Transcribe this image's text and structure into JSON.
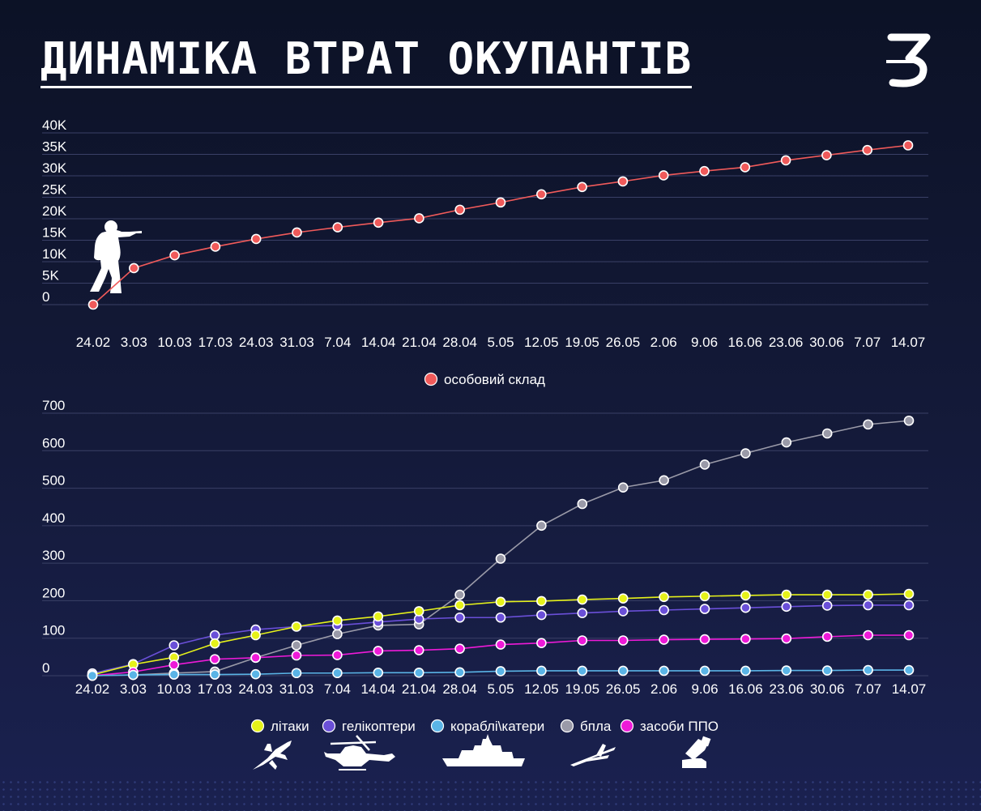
{
  "title": "ДИНАМІКА ВТРАТ ОКУПАНТІВ",
  "logo_text": "З",
  "colors": {
    "background": "#0c1226",
    "personnel": "#f05a5a",
    "aircraft": "#e6f21a",
    "helicopters": "#6a4fd8",
    "ships": "#5ab4e6",
    "uav": "#9a9aa8",
    "air_defense": "#ee1ad8"
  },
  "icons": [
    "soldier-icon",
    "plane-icon",
    "helicopter-icon",
    "ship-icon",
    "uav-icon",
    "air-defense-icon"
  ],
  "chart_data": [
    {
      "type": "line",
      "categories": [
        "24.02",
        "3.03",
        "10.03",
        "17.03",
        "24.03",
        "31.03",
        "7.04",
        "14.04",
        "21.04",
        "28.04",
        "5.05",
        "12.05",
        "19.05",
        "26.05",
        "2.06",
        "9.06",
        "16.06",
        "23.06",
        "30.06",
        "7.07",
        "14.07"
      ],
      "y_ticks": [
        "0",
        "5K",
        "10K",
        "15K",
        "20K",
        "25K",
        "30K",
        "35K",
        "40K"
      ],
      "ylim": [
        0,
        40000
      ],
      "grid": true,
      "legend_position": "bottom-center",
      "series": [
        {
          "name": "особовий склад",
          "color": "#f05a5a",
          "values": [
            0,
            8500,
            11500,
            13500,
            15300,
            16800,
            18000,
            19100,
            20100,
            22100,
            23800,
            25700,
            27400,
            28700,
            30100,
            31100,
            32000,
            33600,
            34800,
            36000,
            37100
          ]
        }
      ]
    },
    {
      "type": "line",
      "categories": [
        "24.02",
        "3.03",
        "10.03",
        "17.03",
        "24.03",
        "31.03",
        "7.04",
        "14.04",
        "21.04",
        "28.04",
        "5.05",
        "12.05",
        "19.05",
        "26.05",
        "2.06",
        "9.06",
        "16.06",
        "23.06",
        "30.06",
        "7.07",
        "14.07"
      ],
      "y_ticks": [
        "0",
        "100",
        "200",
        "300",
        "400",
        "500",
        "600",
        "700"
      ],
      "ylim": [
        0,
        700
      ],
      "grid": true,
      "legend_position": "bottom-center",
      "series": [
        {
          "name": "літаки",
          "color": "#e6f21a",
          "values": [
            2,
            30,
            49,
            86,
            108,
            131,
            147,
            158,
            172,
            188,
            197,
            199,
            203,
            206,
            210,
            212,
            214,
            216,
            216,
            216,
            218
          ]
        },
        {
          "name": "гелікоптери",
          "color": "#6a4fd8",
          "values": [
            6,
            31,
            81,
            108,
            123,
            131,
            134,
            143,
            151,
            155,
            155,
            162,
            167,
            172,
            175,
            178,
            181,
            184,
            187,
            188,
            188
          ]
        },
        {
          "name": "кораблі\\катери",
          "color": "#5ab4e6",
          "values": [
            0,
            2,
            3,
            3,
            4,
            7,
            7,
            8,
            8,
            9,
            12,
            13,
            13,
            13,
            13,
            13,
            13,
            14,
            14,
            15,
            15
          ]
        },
        {
          "name": "бпла",
          "color": "#9a9aa8",
          "values": [
            0,
            2,
            7,
            11,
            48,
            81,
            111,
            134,
            137,
            216,
            312,
            400,
            458,
            502,
            521,
            563,
            593,
            622,
            646,
            670,
            680
          ]
        },
        {
          "name": "засоби ППО",
          "color": "#ee1ad8",
          "values": [
            0,
            10,
            29,
            44,
            48,
            54,
            55,
            66,
            68,
            72,
            83,
            87,
            94,
            94,
            96,
            97,
            98,
            99,
            104,
            108,
            108
          ]
        }
      ]
    }
  ]
}
